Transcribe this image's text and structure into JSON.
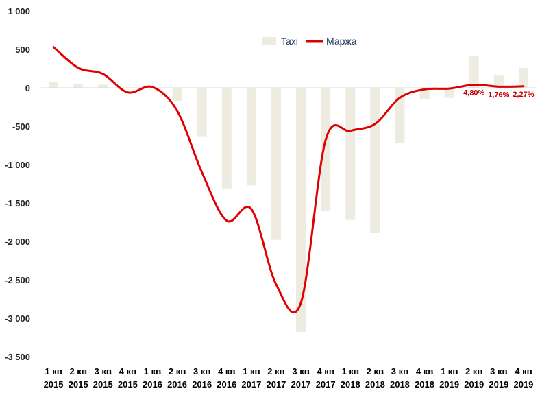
{
  "chart_data": {
    "type": "bar",
    "categories": [
      [
        "1 кв",
        "2015"
      ],
      [
        "2 кв",
        "2015"
      ],
      [
        "3 кв",
        "2015"
      ],
      [
        "4 кв",
        "2015"
      ],
      [
        "1 кв",
        "2016"
      ],
      [
        "2 кв",
        "2016"
      ],
      [
        "3 кв",
        "2016"
      ],
      [
        "4 кв",
        "2016"
      ],
      [
        "1 кв",
        "2017"
      ],
      [
        "2 кв",
        "2017"
      ],
      [
        "3 кв",
        "2017"
      ],
      [
        "4 кв",
        "2017"
      ],
      [
        "1 кв",
        "2018"
      ],
      [
        "2 кв",
        "2018"
      ],
      [
        "3 кв",
        "2018"
      ],
      [
        "4 кв",
        "2018"
      ],
      [
        "1 кв",
        "2019"
      ],
      [
        "2 кв",
        "2019"
      ],
      [
        "3 кв",
        "2019"
      ],
      [
        "4 кв",
        "2019"
      ]
    ],
    "series": [
      {
        "name": "Taxi",
        "kind": "bar",
        "color": "#eeece1",
        "values": [
          80,
          50,
          40,
          0,
          0,
          -170,
          -640,
          -1310,
          -1270,
          -1980,
          -3180,
          -1600,
          -1720,
          -1890,
          -720,
          -150,
          -130,
          410,
          160,
          260
        ]
      },
      {
        "name": "Маржа",
        "kind": "line",
        "color": "#e00000",
        "values": [
          530,
          260,
          180,
          -60,
          10,
          -300,
          -1100,
          -1730,
          -1580,
          -2560,
          -2800,
          -680,
          -560,
          -470,
          -130,
          -20,
          -10,
          40,
          15,
          20
        ],
        "data_labels": {
          "17": "4,80%",
          "18": "1,76%",
          "19": "2,27%"
        }
      }
    ],
    "ylim": [
      -3500,
      1000
    ],
    "yticks": [
      1000,
      500,
      0,
      -500,
      -1000,
      -1500,
      -2000,
      -2500,
      -3000,
      -3500
    ],
    "ytick_labels": [
      "1 000",
      "500",
      "0",
      "-500",
      "-1 000",
      "-1 500",
      "-2 000",
      "-2 500",
      "-3 000",
      "-3 500"
    ],
    "title": "",
    "xlabel": "",
    "ylabel": "",
    "legend_position": "top-right",
    "grid": "horizontal zero line only"
  }
}
